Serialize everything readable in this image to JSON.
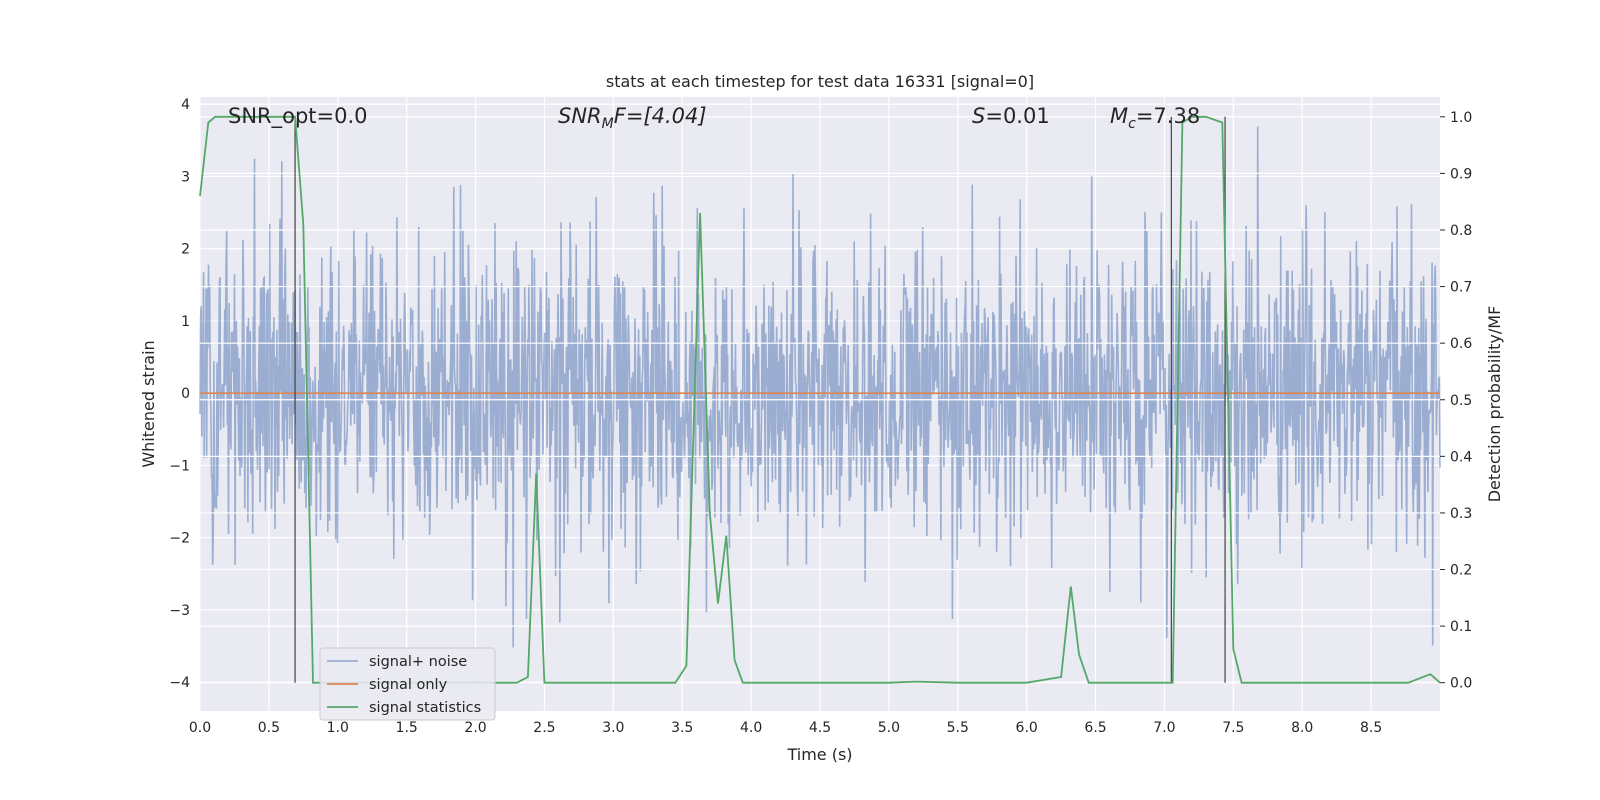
{
  "chart_data": {
    "type": "line",
    "title": "stats at each timestep for test data 16331 [signal=0]",
    "xlabel": "Time (s)",
    "ylabel_left": "Whitened strain",
    "ylabel_right": "Detection probability/MF",
    "xlim": [
      0.0,
      9.0
    ],
    "ylim_left": [
      -4.4,
      4.1
    ],
    "ylim_right": [
      -0.05,
      1.035
    ],
    "x_ticks": [
      "0.0",
      "0.5",
      "1.0",
      "1.5",
      "2.0",
      "2.5",
      "3.0",
      "3.5",
      "4.0",
      "4.5",
      "5.0",
      "5.5",
      "6.0",
      "6.5",
      "7.0",
      "7.5",
      "8.0",
      "8.5"
    ],
    "x_tick_values": [
      0.0,
      0.5,
      1.0,
      1.5,
      2.0,
      2.5,
      3.0,
      3.5,
      4.0,
      4.5,
      5.0,
      5.5,
      6.0,
      6.5,
      7.0,
      7.5,
      8.0,
      8.5
    ],
    "y_ticks_left": [
      "−4",
      "−3",
      "−2",
      "−1",
      "0",
      "1",
      "2",
      "3",
      "4"
    ],
    "y_tick_values_left": [
      -4,
      -3,
      -2,
      -1,
      0,
      1,
      2,
      3,
      4
    ],
    "y_ticks_right": [
      "0.0",
      "0.1",
      "0.2",
      "0.3",
      "0.4",
      "0.5",
      "0.6",
      "0.7",
      "0.8",
      "0.9",
      "1.0"
    ],
    "y_tick_values_right": [
      0.0,
      0.1,
      0.2,
      0.3,
      0.4,
      0.5,
      0.6,
      0.7,
      0.8,
      0.9,
      1.0
    ],
    "grid": true,
    "legend_position": "lower-left",
    "annotations": {
      "snr_opt": "SNR_opt=0.0",
      "snr_mf_main": "SNR",
      "snr_mf_sub": "M",
      "snr_mf_rest": "F=[4.04]",
      "s_main": "S",
      "s_rest": "=0.01",
      "mc_main": "M",
      "mc_sub": "c",
      "mc_rest": "=7.38"
    },
    "vertical_lines": [
      0.69,
      7.05,
      7.44
    ],
    "series": [
      {
        "name": "signal+ noise",
        "axis": "left",
        "color": "#4c72b0",
        "kind": "noise",
        "sigma": 1.0,
        "samples": 2048
      },
      {
        "name": "signal only",
        "axis": "left",
        "color": "#dd8452",
        "x": [
          0.0,
          9.0
        ],
        "y": [
          0.0,
          0.0
        ]
      },
      {
        "name": "signal statistics",
        "axis": "right",
        "color": "#55a868",
        "x": [
          0.0,
          0.06,
          0.11,
          0.16,
          0.3,
          0.45,
          0.6,
          0.69,
          0.75,
          0.82,
          1.0,
          1.5,
          2.0,
          2.3,
          2.38,
          2.44,
          2.5,
          3.0,
          3.45,
          3.53,
          3.63,
          3.7,
          3.76,
          3.82,
          3.88,
          3.94,
          4.5,
          5.0,
          5.2,
          5.5,
          6.0,
          6.25,
          6.32,
          6.38,
          6.45,
          7.0,
          7.06,
          7.13,
          7.2,
          7.3,
          7.42,
          7.5,
          7.56,
          8.0,
          8.5,
          8.77,
          8.93,
          9.0
        ],
        "y": [
          0.86,
          0.99,
          1.0,
          1.0,
          1.0,
          1.0,
          1.0,
          1.0,
          0.81,
          0.0,
          0.0,
          0.0,
          0.0,
          0.0,
          0.01,
          0.37,
          0.0,
          0.0,
          0.0,
          0.03,
          0.83,
          0.3,
          0.14,
          0.26,
          0.04,
          0.0,
          0.0,
          0.0,
          0.002,
          0.0,
          0.0,
          0.01,
          0.17,
          0.05,
          0.0,
          0.0,
          0.0,
          0.99,
          1.0,
          1.0,
          0.99,
          0.06,
          0.0,
          0.0,
          0.0,
          0.0,
          0.015,
          0.0
        ]
      }
    ]
  }
}
